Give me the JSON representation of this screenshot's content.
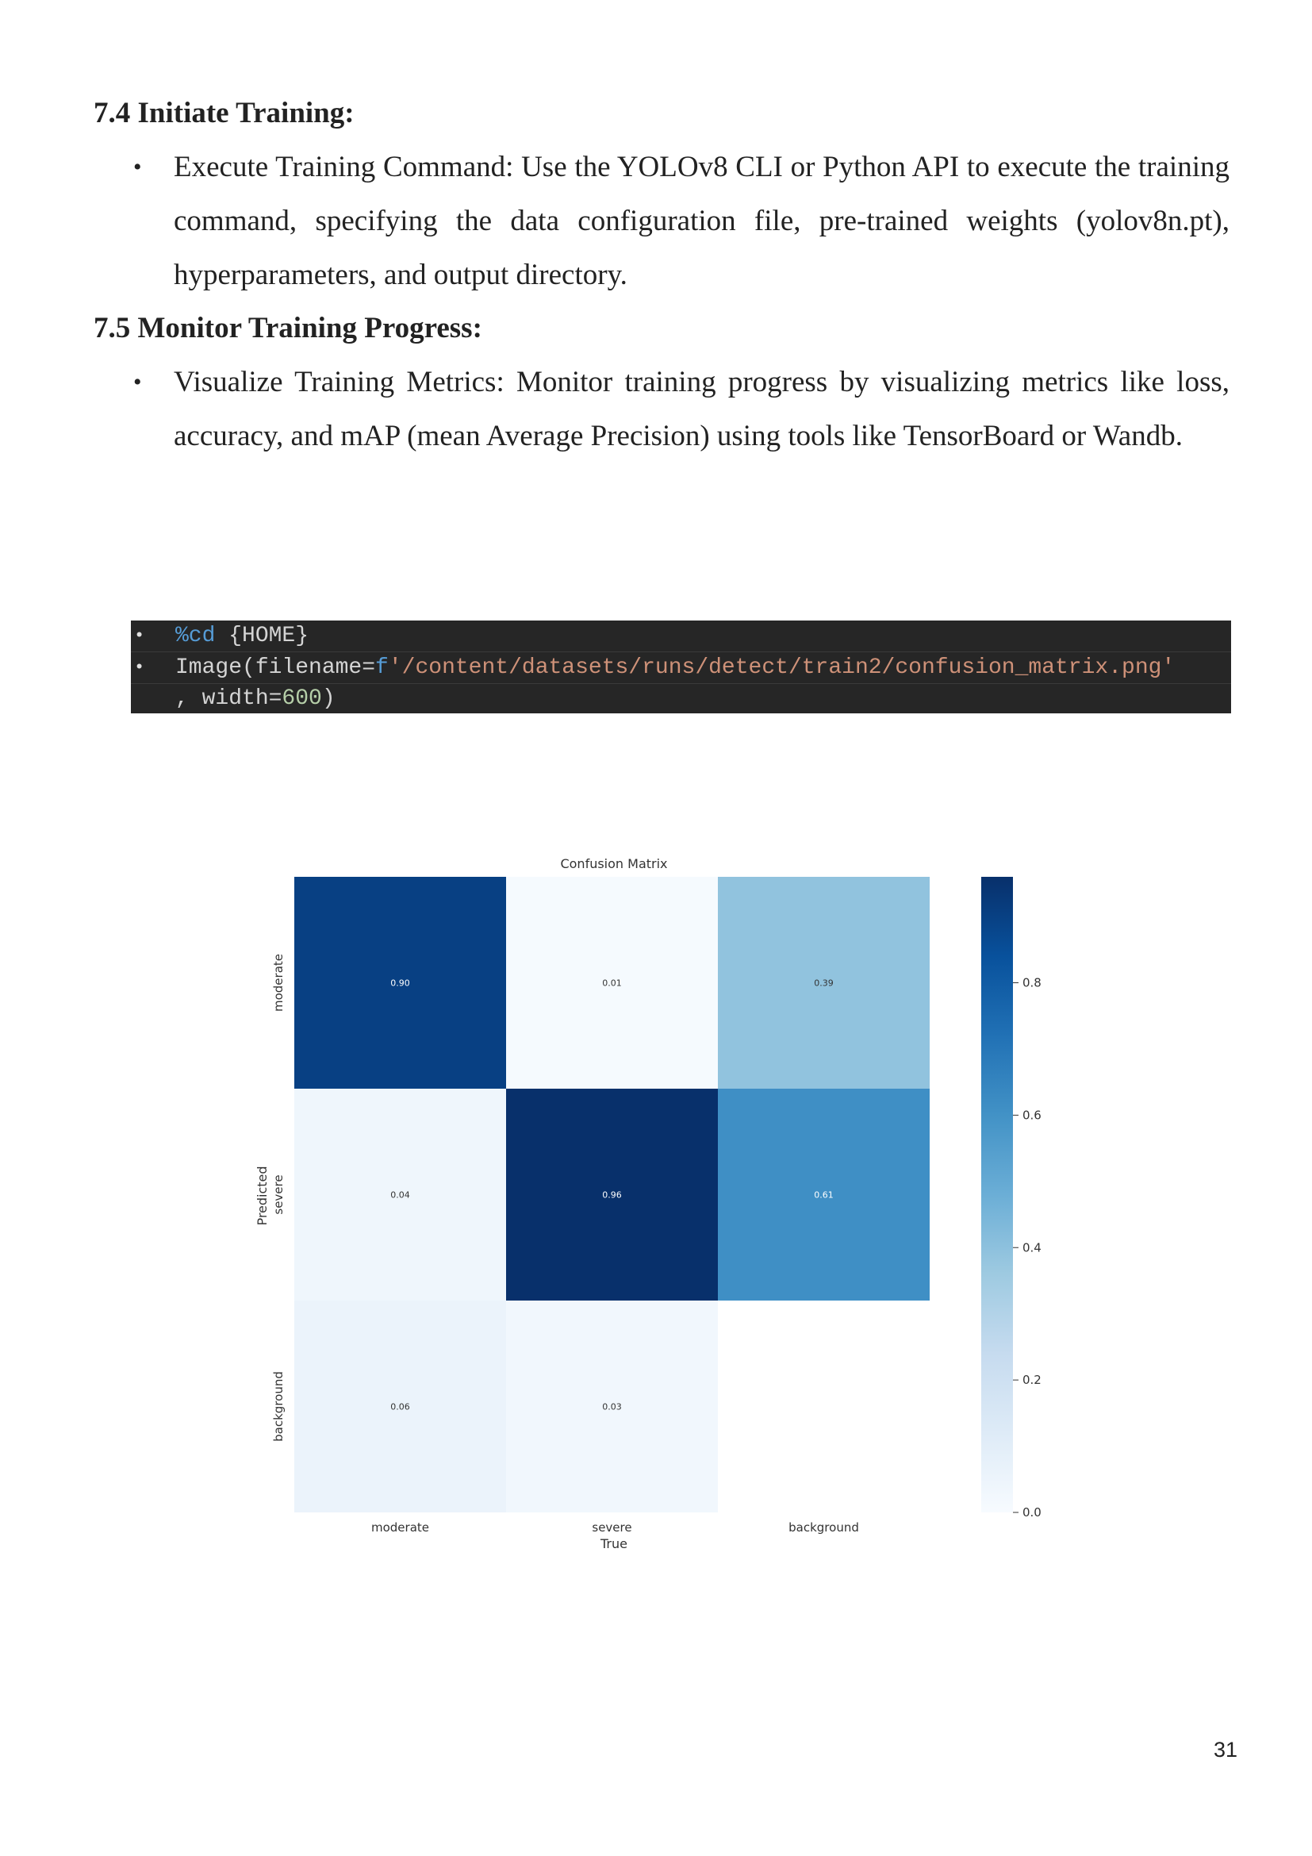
{
  "sections": [
    {
      "heading": "7.4 Initiate Training:",
      "bullets": [
        "Execute Training Command: Use the YOLOv8 CLI or Python API to execute the training command, specifying the data configuration file, pre-trained weights (yolov8n.pt), hyperparameters, and output directory."
      ]
    },
    {
      "heading": "7.5 Monitor Training Progress:",
      "bullets": [
        "Visualize Training Metrics: Monitor training progress by visualizing metrics like loss, accuracy, and mAP (mean Average Precision) using tools like TensorBoard or Wandb."
      ]
    }
  ],
  "code": {
    "bullet": "•",
    "line1": {
      "magic": "%cd",
      "rest": " {HOME}"
    },
    "line2": {
      "call": "Image(filename=",
      "prefix": "f",
      "string": "'/content/datasets/runs/detect/train2/confusion_matrix.png'"
    },
    "line3": {
      "text": ", width=",
      "number": "600",
      "close": ")"
    }
  },
  "chart_data": {
    "type": "heatmap",
    "title": "Confusion Matrix",
    "xlabel": "True",
    "ylabel": "Predicted",
    "x_categories": [
      "moderate",
      "severe",
      "background"
    ],
    "y_categories": [
      "moderate",
      "severe",
      "background"
    ],
    "values": [
      [
        0.9,
        0.01,
        0.39
      ],
      [
        0.04,
        0.96,
        0.61
      ],
      [
        0.06,
        0.03,
        null
      ]
    ],
    "colormap": "Blues",
    "colorbar": {
      "min": 0.0,
      "max": 0.96,
      "ticks": [
        0.0,
        0.2,
        0.4,
        0.6,
        0.8
      ],
      "tick_labels": [
        "0.0",
        "0.2",
        "0.4",
        "0.6",
        "0.8"
      ]
    }
  },
  "page_number": "31"
}
